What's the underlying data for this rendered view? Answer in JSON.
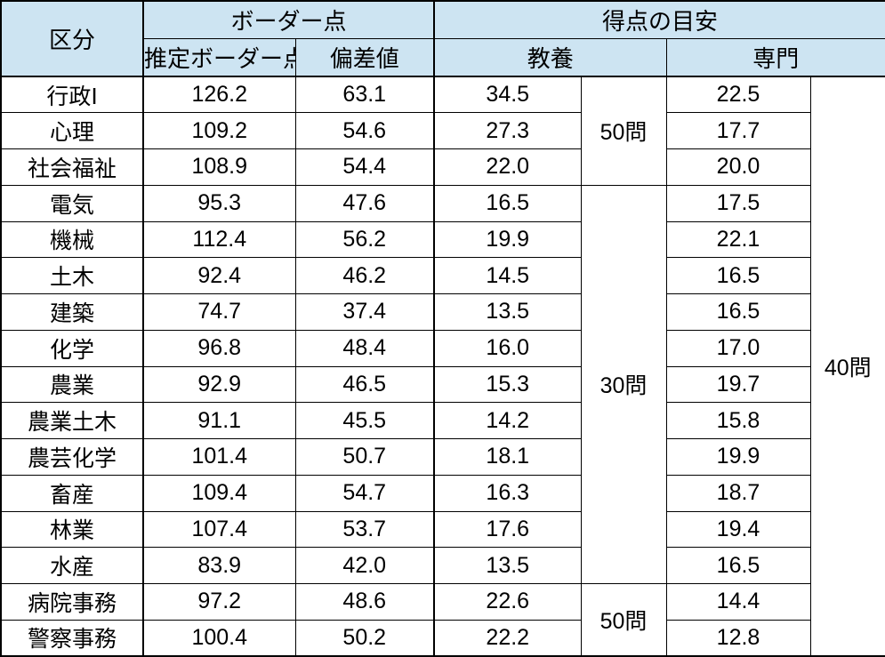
{
  "chart_data": {
    "type": "table",
    "header": {
      "category": "区分",
      "border_group": "ボーダー点",
      "score_group": "得点の目安",
      "estimated_border": "推定ボーダー点",
      "deviation": "偏差値",
      "kyoyo": "教養",
      "senmon": "専門"
    },
    "rows": [
      {
        "category": "行政Ⅰ",
        "estimated_border": "126.2",
        "deviation": "63.1",
        "kyoyo": "34.5",
        "senmon": "22.5"
      },
      {
        "category": "心理",
        "estimated_border": "109.2",
        "deviation": "54.6",
        "kyoyo": "27.3",
        "senmon": "17.7"
      },
      {
        "category": "社会福祉",
        "estimated_border": "108.9",
        "deviation": "54.4",
        "kyoyo": "22.0",
        "senmon": "20.0"
      },
      {
        "category": "電気",
        "estimated_border": "95.3",
        "deviation": "47.6",
        "kyoyo": "16.5",
        "senmon": "17.5"
      },
      {
        "category": "機械",
        "estimated_border": "112.4",
        "deviation": "56.2",
        "kyoyo": "19.9",
        "senmon": "22.1"
      },
      {
        "category": "土木",
        "estimated_border": "92.4",
        "deviation": "46.2",
        "kyoyo": "14.5",
        "senmon": "16.5"
      },
      {
        "category": "建築",
        "estimated_border": "74.7",
        "deviation": "37.4",
        "kyoyo": "13.5",
        "senmon": "16.5"
      },
      {
        "category": "化学",
        "estimated_border": "96.8",
        "deviation": "48.4",
        "kyoyo": "16.0",
        "senmon": "17.0"
      },
      {
        "category": "農業",
        "estimated_border": "92.9",
        "deviation": "46.5",
        "kyoyo": "15.3",
        "senmon": "19.7"
      },
      {
        "category": "農業土木",
        "estimated_border": "91.1",
        "deviation": "45.5",
        "kyoyo": "14.2",
        "senmon": "15.8"
      },
      {
        "category": "農芸化学",
        "estimated_border": "101.4",
        "deviation": "50.7",
        "kyoyo": "18.1",
        "senmon": "19.9"
      },
      {
        "category": "畜産",
        "estimated_border": "109.4",
        "deviation": "54.7",
        "kyoyo": "16.3",
        "senmon": "18.7"
      },
      {
        "category": "林業",
        "estimated_border": "107.4",
        "deviation": "53.7",
        "kyoyo": "17.6",
        "senmon": "19.4"
      },
      {
        "category": "水産",
        "estimated_border": "83.9",
        "deviation": "42.0",
        "kyoyo": "13.5",
        "senmon": "16.5"
      },
      {
        "category": "病院事務",
        "estimated_border": "97.2",
        "deviation": "48.6",
        "kyoyo": "22.6",
        "senmon": "14.4"
      },
      {
        "category": "警察事務",
        "estimated_border": "100.4",
        "deviation": "50.2",
        "kyoyo": "22.2",
        "senmon": "12.8"
      }
    ],
    "kyoyo_question_groups": [
      {
        "label": "50問",
        "start": 0,
        "span": 3
      },
      {
        "label": "30問",
        "start": 3,
        "span": 11
      },
      {
        "label": "50問",
        "start": 14,
        "span": 2
      }
    ],
    "senmon_question_total": {
      "label": "40問",
      "span": 16
    }
  },
  "colors": {
    "header_bg": "#CDE4F2",
    "border": "#000000",
    "text": "#000000",
    "body_bg": "#FFFFFF"
  }
}
